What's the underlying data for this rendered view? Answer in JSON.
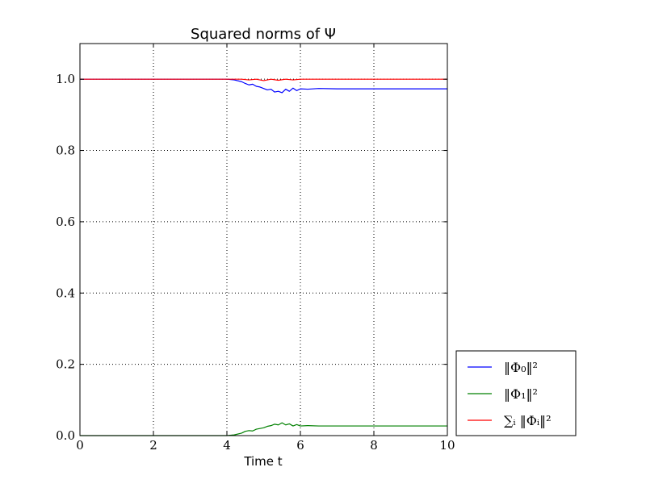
{
  "chart_data": {
    "type": "line",
    "title": "Squared norms of Ψ",
    "xlabel": "Time t",
    "ylabel": "",
    "xlim": [
      0,
      10
    ],
    "ylim": [
      0,
      1.1
    ],
    "xticks": [
      0,
      2,
      4,
      6,
      8,
      10
    ],
    "yticks": [
      0.0,
      0.2,
      0.4,
      0.6,
      0.8,
      1.0
    ],
    "xtick_labels": [
      "0",
      "2",
      "4",
      "6",
      "8",
      "10"
    ],
    "ytick_labels": [
      "0.0",
      "0.2",
      "0.4",
      "0.6",
      "0.8",
      "1.0"
    ],
    "grid": true,
    "legend_position": "lower-right-outside",
    "series": [
      {
        "name": "‖Φ₀‖²",
        "color": "#0000ff",
        "x": [
          0,
          4.0,
          4.2,
          4.4,
          4.5,
          4.6,
          4.7,
          4.8,
          4.9,
          5.0,
          5.1,
          5.2,
          5.3,
          5.4,
          5.5,
          5.6,
          5.7,
          5.8,
          5.9,
          6.0,
          6.2,
          6.5,
          7.0,
          8.0,
          10.0
        ],
        "y": [
          1.0,
          1.0,
          0.998,
          0.993,
          0.988,
          0.984,
          0.986,
          0.98,
          0.978,
          0.974,
          0.97,
          0.972,
          0.964,
          0.966,
          0.962,
          0.972,
          0.966,
          0.975,
          0.968,
          0.973,
          0.972,
          0.974,
          0.973,
          0.973,
          0.973
        ]
      },
      {
        "name": "‖Φ₁‖²",
        "color": "#008000",
        "x": [
          0,
          4.0,
          4.2,
          4.4,
          4.5,
          4.6,
          4.7,
          4.8,
          4.9,
          5.0,
          5.1,
          5.2,
          5.3,
          5.4,
          5.5,
          5.6,
          5.7,
          5.8,
          5.9,
          6.0,
          6.2,
          6.5,
          7.0,
          8.0,
          10.0
        ],
        "y": [
          0.0,
          0.0,
          0.002,
          0.007,
          0.012,
          0.014,
          0.013,
          0.018,
          0.02,
          0.022,
          0.026,
          0.028,
          0.032,
          0.03,
          0.036,
          0.03,
          0.033,
          0.027,
          0.031,
          0.027,
          0.028,
          0.027,
          0.027,
          0.027,
          0.027
        ]
      },
      {
        "name": "∑ᵢ ‖Φᵢ‖²",
        "color": "#ff0000",
        "x": [
          0,
          4.0,
          4.4,
          4.6,
          4.8,
          5.0,
          5.2,
          5.4,
          5.6,
          5.8,
          6.0,
          6.5,
          10.0
        ],
        "y": [
          1.0,
          1.0,
          1.0,
          0.998,
          1.0,
          0.996,
          1.0,
          0.997,
          1.0,
          0.998,
          1.0,
          1.0,
          1.0
        ]
      }
    ]
  }
}
